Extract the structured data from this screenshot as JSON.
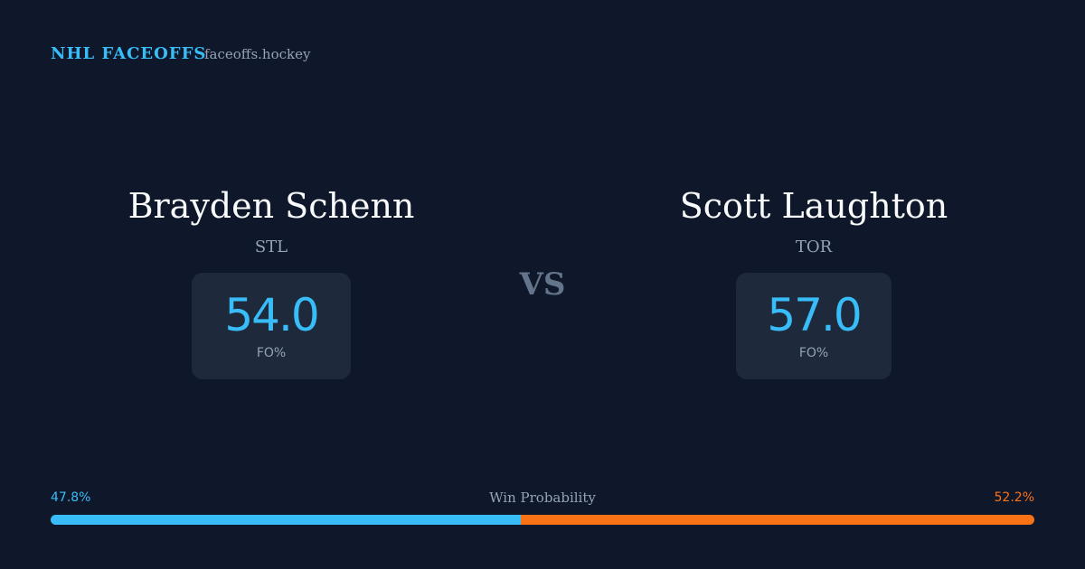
{
  "header": {
    "brand": "NHL FACEOFFS",
    "site": "faceoffs.hockey"
  },
  "players": [
    {
      "name": "Brayden Schenn",
      "team": "STL",
      "stat": "54.0",
      "stat_label": "FO%"
    },
    {
      "name": "Scott Laughton",
      "team": "TOR",
      "stat": "57.0",
      "stat_label": "FO%"
    }
  ],
  "vs": "VS",
  "win_probability": {
    "label": "Win Probability",
    "values": [
      47.8,
      52.2
    ],
    "value_labels": [
      "47.8%",
      "52.2%"
    ],
    "colors": [
      "#38bdf8",
      "#f97316"
    ]
  }
}
